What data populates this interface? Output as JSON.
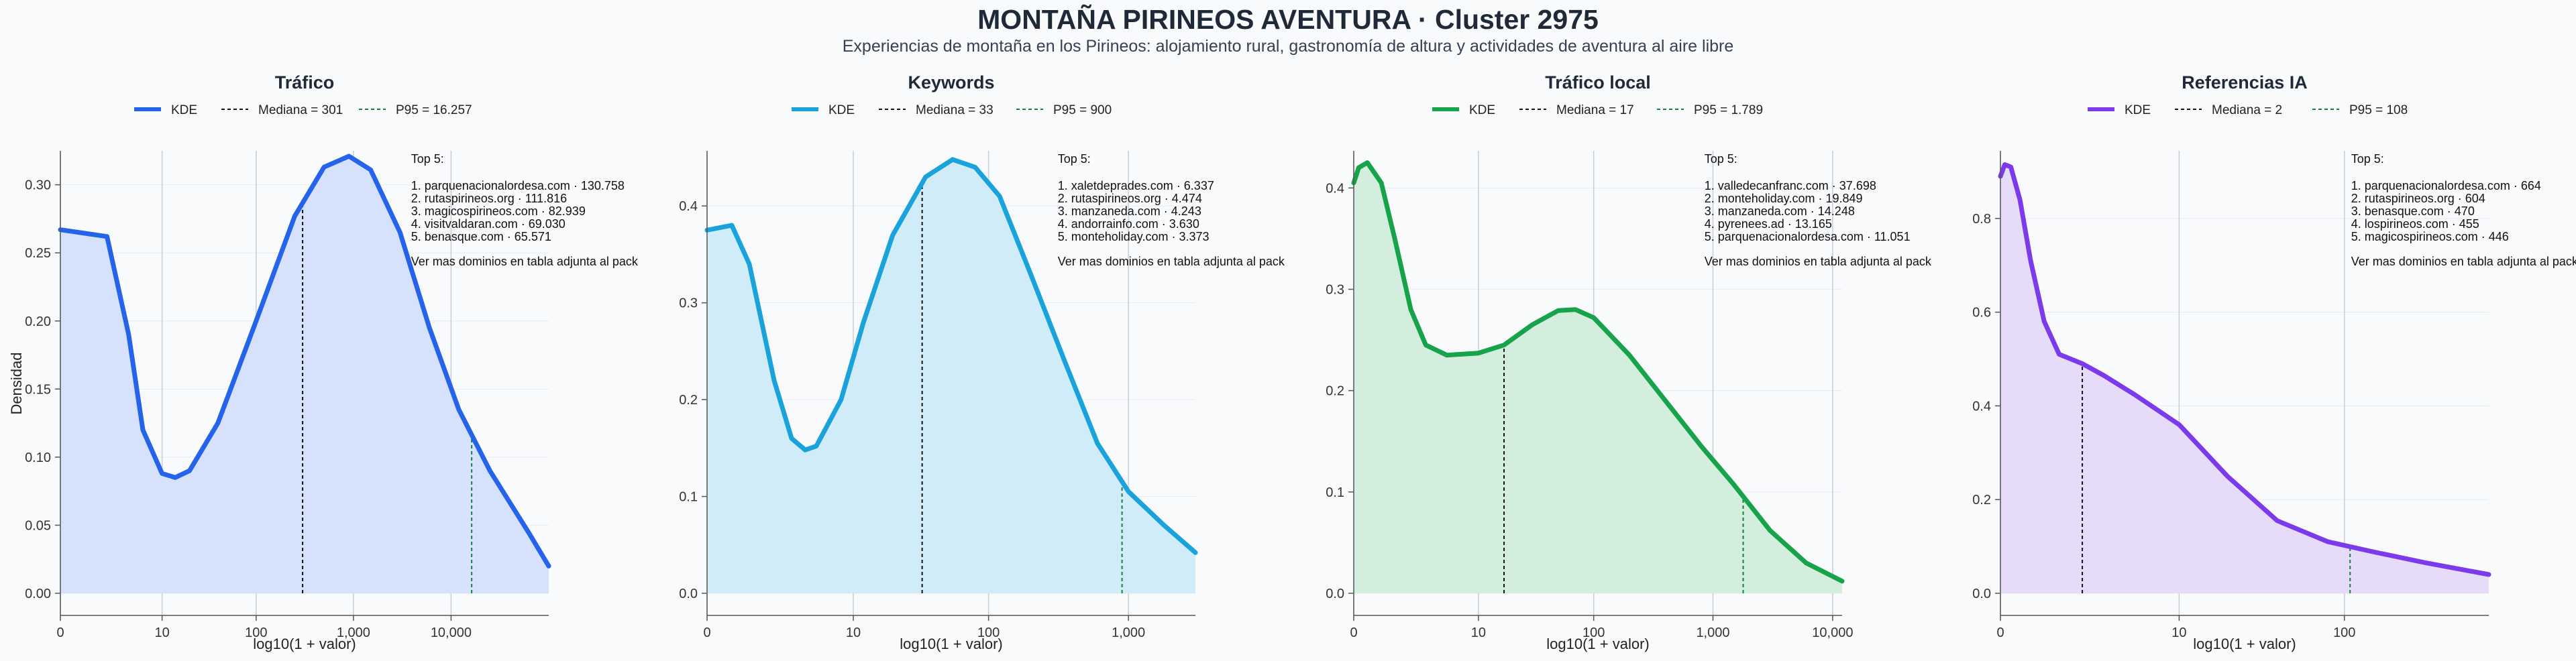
{
  "title": "MONTAÑA PIRINEOS AVENTURA · Cluster 2975",
  "subtitle": "Experiencias de montaña en los Pirineos: alojamiento rural, gastronomía de altura y actividades de aventura al aire libre",
  "chart_data": [
    {
      "type": "area",
      "title": "Tráfico",
      "xlabel": "log10(1 + valor)",
      "ylabel": "Densidad",
      "color": "#2563eb",
      "fill": "#d6e1fb",
      "x_scale": "log10(1+x)",
      "xlim": [
        0,
        100000
      ],
      "ylim": [
        0,
        0.32
      ],
      "xticks": [
        0,
        10,
        100,
        1000,
        10000
      ],
      "xtick_labels": [
        "0",
        "10",
        "100",
        "1,000",
        "10,000"
      ],
      "yticks": [
        0,
        0.05,
        0.1,
        0.15,
        0.2,
        0.25,
        0.3
      ],
      "ytick_labels": [
        "0.00",
        "0.05",
        "0.10",
        "0.15",
        "0.20",
        "0.25",
        "0.30"
      ],
      "legend": [
        "KDE",
        "Mediana = 301",
        "P95 = 16.257"
      ],
      "median": 301,
      "p95": 16257,
      "kde": [
        [
          0,
          0.267
        ],
        [
          2,
          0.262
        ],
        [
          4,
          0.19
        ],
        [
          6,
          0.12
        ],
        [
          10,
          0.088
        ],
        [
          14,
          0.085
        ],
        [
          20,
          0.09
        ],
        [
          40,
          0.125
        ],
        [
          100,
          0.2
        ],
        [
          250,
          0.277
        ],
        [
          500,
          0.313
        ],
        [
          900,
          0.321
        ],
        [
          1500,
          0.311
        ],
        [
          3000,
          0.265
        ],
        [
          6000,
          0.195
        ],
        [
          12000,
          0.135
        ],
        [
          25000,
          0.09
        ],
        [
          63000,
          0.044
        ],
        [
          100000,
          0.02
        ]
      ],
      "top5_title": "Top 5:",
      "top5": [
        "1. parquenacionalordesa.com · 130.758",
        "2. rutaspirineos.org · 111.816",
        "3. magicospirineos.com · 82.939",
        "4. visitvaldaran.com · 69.030",
        "5. benasque.com · 65.571"
      ],
      "note": "Ver mas dominios en tabla adjunta al pack"
    },
    {
      "type": "area",
      "title": "Keywords",
      "xlabel": "log10(1 + valor)",
      "ylabel": "",
      "color": "#1aa3db",
      "fill": "#d1ecf9",
      "x_scale": "log10(1+x)",
      "xlim": [
        0,
        3000
      ],
      "ylim": [
        0,
        0.45
      ],
      "xticks": [
        0,
        10,
        100,
        1000
      ],
      "xtick_labels": [
        "0",
        "10",
        "100",
        "1,000"
      ],
      "yticks": [
        0,
        0.1,
        0.2,
        0.3,
        0.4
      ],
      "ytick_labels": [
        "0.0",
        "0.1",
        "0.2",
        "0.3",
        "0.4"
      ],
      "legend": [
        "KDE",
        "Mediana = 33",
        "P95 = 900"
      ],
      "median": 33,
      "p95": 900,
      "kde": [
        [
          0,
          0.375
        ],
        [
          0.5,
          0.38
        ],
        [
          1,
          0.34
        ],
        [
          2,
          0.22
        ],
        [
          3,
          0.16
        ],
        [
          4,
          0.148
        ],
        [
          5,
          0.152
        ],
        [
          8,
          0.2
        ],
        [
          12,
          0.28
        ],
        [
          20,
          0.37
        ],
        [
          35,
          0.43
        ],
        [
          55,
          0.448
        ],
        [
          80,
          0.44
        ],
        [
          120,
          0.41
        ],
        [
          200,
          0.33
        ],
        [
          350,
          0.24
        ],
        [
          600,
          0.155
        ],
        [
          1000,
          0.105
        ],
        [
          1800,
          0.07
        ],
        [
          3000,
          0.042
        ]
      ],
      "top5_title": "Top 5:",
      "top5": [
        "1. xaletdeprades.com · 6.337",
        "2. rutaspirineos.org · 4.474",
        "3. manzaneda.com · 4.243",
        "4. andorrainfo.com · 3.630",
        "5. monteholiday.com · 3.373"
      ],
      "note": "Ver mas dominios en tabla adjunta al pack"
    },
    {
      "type": "area",
      "title": "Tráfico local",
      "xlabel": "log10(1 + valor)",
      "ylabel": "",
      "color": "#16a34a",
      "fill": "#d3eedc",
      "x_scale": "log10(1+x)",
      "xlim": [
        0,
        12000
      ],
      "ylim": [
        0,
        0.43
      ],
      "xticks": [
        0,
        10,
        100,
        1000,
        10000
      ],
      "xtick_labels": [
        "0",
        "10",
        "100",
        "1,000",
        "10,000"
      ],
      "yticks": [
        0,
        0.1,
        0.2,
        0.3,
        0.4
      ],
      "ytick_labels": [
        "0.0",
        "0.1",
        "0.2",
        "0.3",
        "0.4"
      ],
      "legend": [
        "KDE",
        "Mediana = 17",
        "P95 = 1.789"
      ],
      "median": 17,
      "p95": 1789,
      "kde": [
        [
          0,
          0.405
        ],
        [
          0.1,
          0.42
        ],
        [
          0.3,
          0.425
        ],
        [
          0.7,
          0.405
        ],
        [
          1.2,
          0.35
        ],
        [
          2,
          0.28
        ],
        [
          3,
          0.245
        ],
        [
          5,
          0.235
        ],
        [
          10,
          0.237
        ],
        [
          17,
          0.245
        ],
        [
          30,
          0.265
        ],
        [
          50,
          0.279
        ],
        [
          70,
          0.28
        ],
        [
          100,
          0.272
        ],
        [
          200,
          0.235
        ],
        [
          400,
          0.19
        ],
        [
          800,
          0.145
        ],
        [
          1500,
          0.107
        ],
        [
          3000,
          0.062
        ],
        [
          6000,
          0.03
        ],
        [
          12000,
          0.012
        ]
      ],
      "top5_title": "Top 5:",
      "top5": [
        "1. valledecanfranc.com · 37.698",
        "2. monteholiday.com · 19.849",
        "3. manzaneda.com · 14.248",
        "4. pyrenees.ad · 13.165",
        "5. parquenacionalordesa.com · 11.051"
      ],
      "note": "Ver mas dominios en tabla adjunta al pack"
    },
    {
      "type": "area",
      "title": "Referencias IA",
      "xlabel": "log10(1 + valor)",
      "ylabel": "",
      "color": "#7c3aed",
      "fill": "#e6dbf9",
      "x_scale": "log10(1+x)",
      "xlim": [
        0,
        700
      ],
      "ylim": [
        0,
        0.93
      ],
      "xticks": [
        0,
        10,
        100
      ],
      "xtick_labels": [
        "0",
        "10",
        "100"
      ],
      "yticks": [
        0,
        0.2,
        0.4,
        0.6,
        0.8
      ],
      "ytick_labels": [
        "0.0",
        "0.2",
        "0.4",
        "0.6",
        "0.8"
      ],
      "legend": [
        "KDE",
        "Mediana = 2",
        "P95 = 108"
      ],
      "median": 2,
      "p95": 108,
      "kde": [
        [
          0,
          0.89
        ],
        [
          0.06,
          0.915
        ],
        [
          0.15,
          0.91
        ],
        [
          0.3,
          0.84
        ],
        [
          0.5,
          0.71
        ],
        [
          0.8,
          0.58
        ],
        [
          1.2,
          0.51
        ],
        [
          2,
          0.49
        ],
        [
          3,
          0.465
        ],
        [
          5,
          0.425
        ],
        [
          10,
          0.36
        ],
        [
          20,
          0.25
        ],
        [
          40,
          0.155
        ],
        [
          80,
          0.11
        ],
        [
          150,
          0.088
        ],
        [
          300,
          0.065
        ],
        [
          700,
          0.04
        ]
      ],
      "top5_title": "Top 5:",
      "top5": [
        "1. parquenacionalordesa.com · 664",
        "2. rutaspirineos.org · 604",
        "3. benasque.com · 470",
        "4. lospirineos.com · 455",
        "5. magicospirineos.com · 446"
      ],
      "note": "Ver mas dominios en tabla adjunta al pack"
    }
  ]
}
